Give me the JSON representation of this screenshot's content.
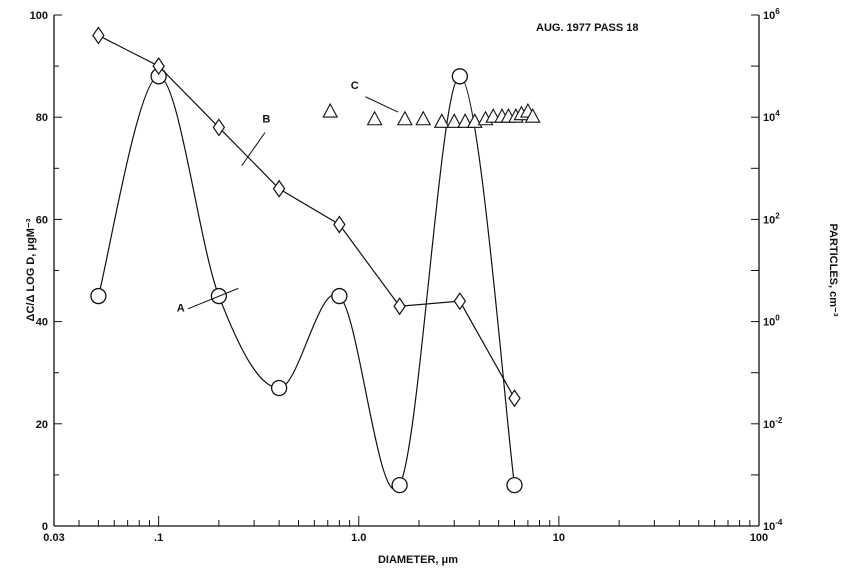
{
  "chart_data": {
    "type": "line",
    "title": "",
    "annotation": "AUG. 1977 PASS 18",
    "xlabel": "DIAMETER, μm",
    "ylabel_left": "ΔC/Δ LOG D, μgM⁻³",
    "ylabel_right": "PARTICLES, cm⁻³",
    "x_scale": "log",
    "xlim": [
      0.03,
      100
    ],
    "ylim_left": [
      0,
      100
    ],
    "ylim_right": [
      0.0001,
      1000000
    ],
    "y_scale_right": "log",
    "grid": false,
    "x_ticks": [
      {
        "value": 0.03,
        "label": "0.03"
      },
      {
        "value": 0.1,
        "label": ".1"
      },
      {
        "value": 1.0,
        "label": "1.0"
      },
      {
        "value": 10,
        "label": "10"
      },
      {
        "value": 100,
        "label": "100"
      }
    ],
    "y_ticks_left": [
      {
        "value": 0,
        "label": "0"
      },
      {
        "value": 20,
        "label": "20"
      },
      {
        "value": 40,
        "label": "40"
      },
      {
        "value": 60,
        "label": "60"
      },
      {
        "value": 80,
        "label": "80"
      },
      {
        "value": 100,
        "label": "100"
      }
    ],
    "y_ticks_right": [
      {
        "value": 0.0001,
        "base": "10",
        "exp": "-4"
      },
      {
        "value": 0.01,
        "base": "10",
        "exp": "-2"
      },
      {
        "value": 1,
        "base": "10",
        "exp": "0"
      },
      {
        "value": 100,
        "base": "10",
        "exp": "2"
      },
      {
        "value": 10000,
        "base": "10",
        "exp": "4"
      },
      {
        "value": 1000000,
        "base": "10",
        "exp": "6"
      }
    ],
    "series": [
      {
        "name": "A",
        "axis": "left",
        "marker": "circle",
        "smooth": true,
        "x": [
          0.05,
          0.1,
          0.2,
          0.4,
          0.8,
          1.6,
          3.2,
          6.0
        ],
        "y": [
          45,
          88,
          45,
          27,
          45,
          8,
          88,
          8
        ]
      },
      {
        "name": "B",
        "axis": "left",
        "marker": "diamond",
        "smooth": false,
        "x": [
          0.05,
          0.1,
          0.2,
          0.4,
          0.8,
          1.6,
          3.2,
          6.0
        ],
        "y": [
          96,
          90,
          78,
          66,
          59,
          43,
          44,
          25
        ]
      },
      {
        "name": "C",
        "axis": "left",
        "marker": "triangle",
        "smooth": false,
        "connect": false,
        "x": [
          0.72,
          1.2,
          1.7,
          2.1,
          2.6,
          3.0,
          3.4,
          3.8,
          4.3,
          4.7,
          5.2,
          5.6,
          6.1,
          6.5,
          7.0,
          7.4
        ],
        "y": [
          81,
          79.5,
          79.5,
          79.5,
          79,
          79,
          79,
          79,
          79.5,
          80,
          80,
          80,
          80,
          80.5,
          81,
          80
        ]
      }
    ],
    "labels": [
      {
        "text": "A",
        "series": "A"
      },
      {
        "text": "B",
        "series": "B"
      },
      {
        "text": "C",
        "series": "C"
      }
    ]
  }
}
